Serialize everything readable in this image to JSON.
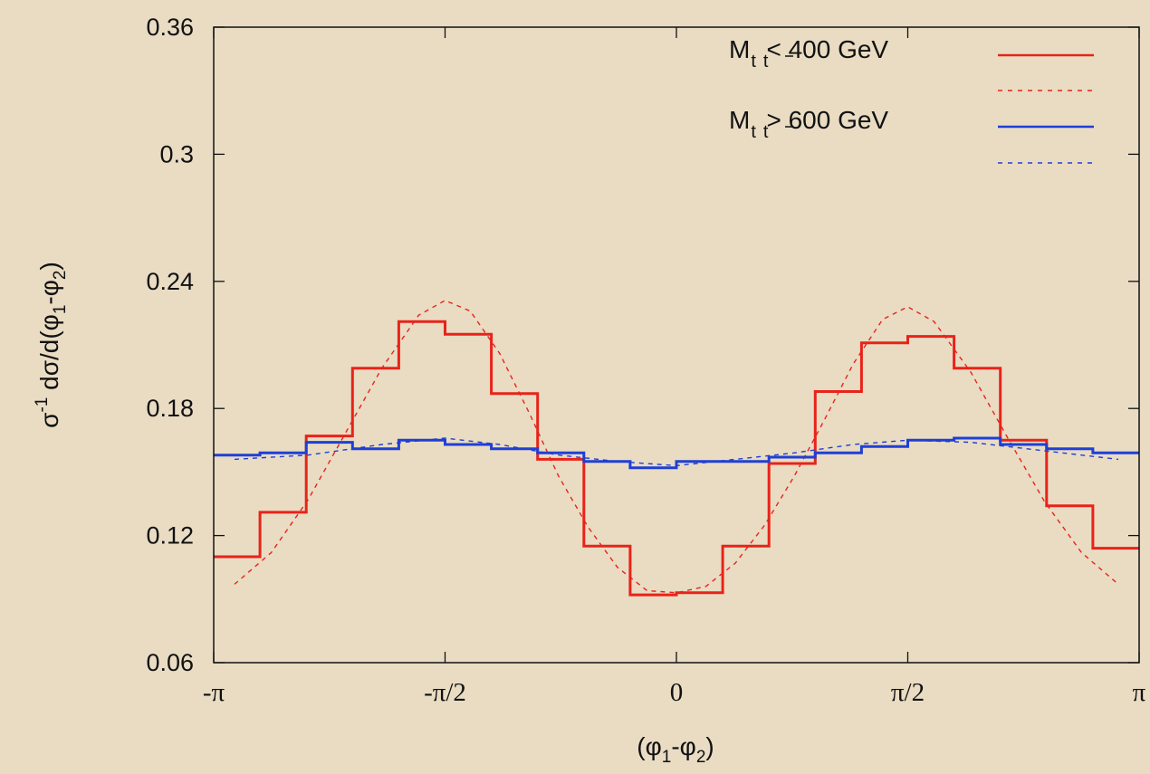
{
  "chart_data": {
    "type": "line",
    "xlabel": "(φ1-φ2)",
    "ylabel": "σ-1 dσ/d(φ1-φ2)",
    "xlim": [
      -3.14159,
      3.14159
    ],
    "ylim": [
      0.06,
      0.36
    ],
    "x_ticks": [
      {
        "value": -3.14159,
        "label": "-π"
      },
      {
        "value": -1.5708,
        "label": "-π/2"
      },
      {
        "value": 0,
        "label": "0"
      },
      {
        "value": 1.5708,
        "label": "π/2"
      },
      {
        "value": 3.14159,
        "label": "π"
      }
    ],
    "y_ticks": [
      {
        "value": 0.06,
        "label": "0.06"
      },
      {
        "value": 0.12,
        "label": "0.12"
      },
      {
        "value": 0.18,
        "label": "0.18"
      },
      {
        "value": 0.24,
        "label": "0.24"
      },
      {
        "value": 0.3,
        "label": "0.3"
      },
      {
        "value": 0.36,
        "label": "0.36"
      }
    ],
    "legend_position": "top-right",
    "bin_edges": [
      -3.14159,
      -2.82743,
      -2.51327,
      -2.19911,
      -1.88496,
      -1.5708,
      -1.25664,
      -0.94248,
      -0.62832,
      -0.31416,
      0,
      0.31416,
      0.62832,
      0.94248,
      1.25664,
      1.5708,
      1.88496,
      2.19911,
      2.51327,
      2.82743,
      3.14159
    ],
    "series": [
      {
        "name": "Mt t̄ < 400 GeV",
        "legend_label": "< 400 GeV",
        "color": "#e8231a",
        "style": "step",
        "values": [
          0.11,
          0.131,
          0.167,
          0.199,
          0.221,
          0.215,
          0.187,
          0.156,
          0.115,
          0.092,
          0.093,
          0.115,
          0.154,
          0.188,
          0.211,
          0.214,
          0.199,
          0.165,
          0.134,
          0.114
        ]
      },
      {
        "name": "",
        "color": "#e8231a",
        "style": "dashed",
        "x": [
          -3.0,
          -2.75,
          -2.5,
          -2.25,
          -2.0,
          -1.75,
          -1.5708,
          -1.4,
          -1.2,
          -1.0,
          -0.8,
          -0.6,
          -0.4,
          -0.2,
          0,
          0.2,
          0.4,
          0.6,
          0.8,
          1.0,
          1.2,
          1.4,
          1.5708,
          1.75,
          2.0,
          2.25,
          2.5,
          2.75,
          3.0
        ],
        "y": [
          0.097,
          0.112,
          0.137,
          0.168,
          0.199,
          0.224,
          0.231,
          0.226,
          0.206,
          0.178,
          0.148,
          0.124,
          0.105,
          0.094,
          0.093,
          0.096,
          0.107,
          0.125,
          0.148,
          0.174,
          0.201,
          0.222,
          0.228,
          0.221,
          0.197,
          0.166,
          0.136,
          0.112,
          0.097
        ]
      },
      {
        "name": "Mt t̄ > 600 GeV",
        "legend_label": "> 600 GeV",
        "color": "#1f3fd4",
        "style": "step",
        "values": [
          0.158,
          0.159,
          0.164,
          0.161,
          0.165,
          0.163,
          0.161,
          0.159,
          0.155,
          0.152,
          0.155,
          0.155,
          0.157,
          0.159,
          0.162,
          0.165,
          0.166,
          0.163,
          0.161,
          0.159
        ]
      },
      {
        "name": "",
        "color": "#1f3fd4",
        "style": "dashed",
        "x": [
          -3.0,
          -2.5,
          -2.0,
          -1.5708,
          -1.2,
          -0.8,
          -0.4,
          0,
          0.4,
          0.8,
          1.2,
          1.5708,
          2.0,
          2.5,
          3.0
        ],
        "y": [
          0.156,
          0.158,
          0.163,
          0.166,
          0.163,
          0.158,
          0.155,
          0.153,
          0.156,
          0.159,
          0.163,
          0.165,
          0.164,
          0.16,
          0.156
        ]
      }
    ]
  },
  "legend": {
    "M": "M",
    "t": "t",
    "tbar": "t",
    "entry1": "< 400 GeV",
    "entry2": "> 600 GeV"
  },
  "axes": {
    "y_sigma": "σ",
    "y_sup": "-1",
    "y_rest": " dσ/d(φ",
    "y_sub1": "1",
    "y_mid": "-φ",
    "y_sub2": "2",
    "y_close": ")",
    "x_open": "(φ",
    "x_sub1": "1",
    "x_mid": "-φ",
    "x_sub2": "2",
    "x_close": ")"
  }
}
